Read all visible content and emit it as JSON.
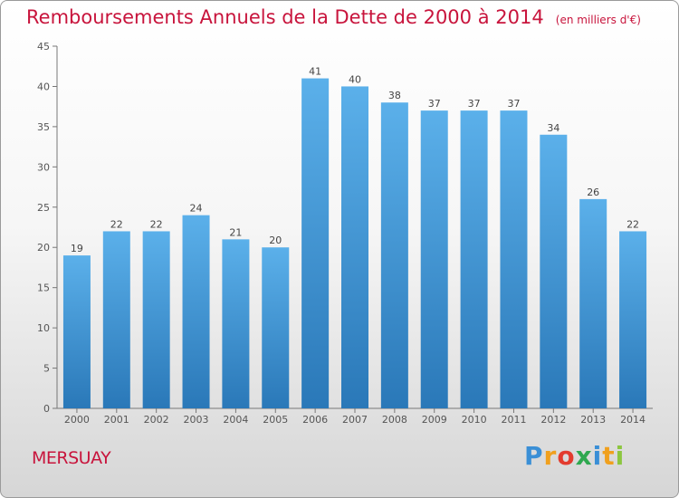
{
  "title": "Remboursements Annuels de la Dette de 2000 à 2014",
  "unit_note": "(en milliers d'€)",
  "town": "MERSUAY",
  "logo": {
    "letters": [
      "P",
      "r",
      "o",
      "x",
      "i",
      "t",
      "i"
    ],
    "colors": [
      "#3a8fd6",
      "#f0a01e",
      "#e33b2e",
      "#2fa84f",
      "#3a8fd6",
      "#f0a01e",
      "#8cc63f"
    ]
  },
  "colors": {
    "bar_top": "#5bb0ea",
    "bar_bottom": "#2a78b8",
    "title": "#c8143c",
    "axis": "#555555"
  },
  "chart_data": {
    "type": "bar",
    "title": "Remboursements Annuels de la Dette de 2000 à 2014",
    "xlabel": "",
    "ylabel": "",
    "categories": [
      "2000",
      "2001",
      "2002",
      "2003",
      "2004",
      "2005",
      "2006",
      "2007",
      "2008",
      "2009",
      "2010",
      "2011",
      "2012",
      "2013",
      "2014"
    ],
    "values": [
      19,
      22,
      22,
      24,
      21,
      20,
      41,
      40,
      38,
      37,
      37,
      37,
      34,
      26,
      22
    ],
    "ylim": [
      0,
      45
    ],
    "yticks": [
      0,
      5,
      10,
      15,
      20,
      25,
      30,
      35,
      40,
      45
    ],
    "grid": false
  }
}
